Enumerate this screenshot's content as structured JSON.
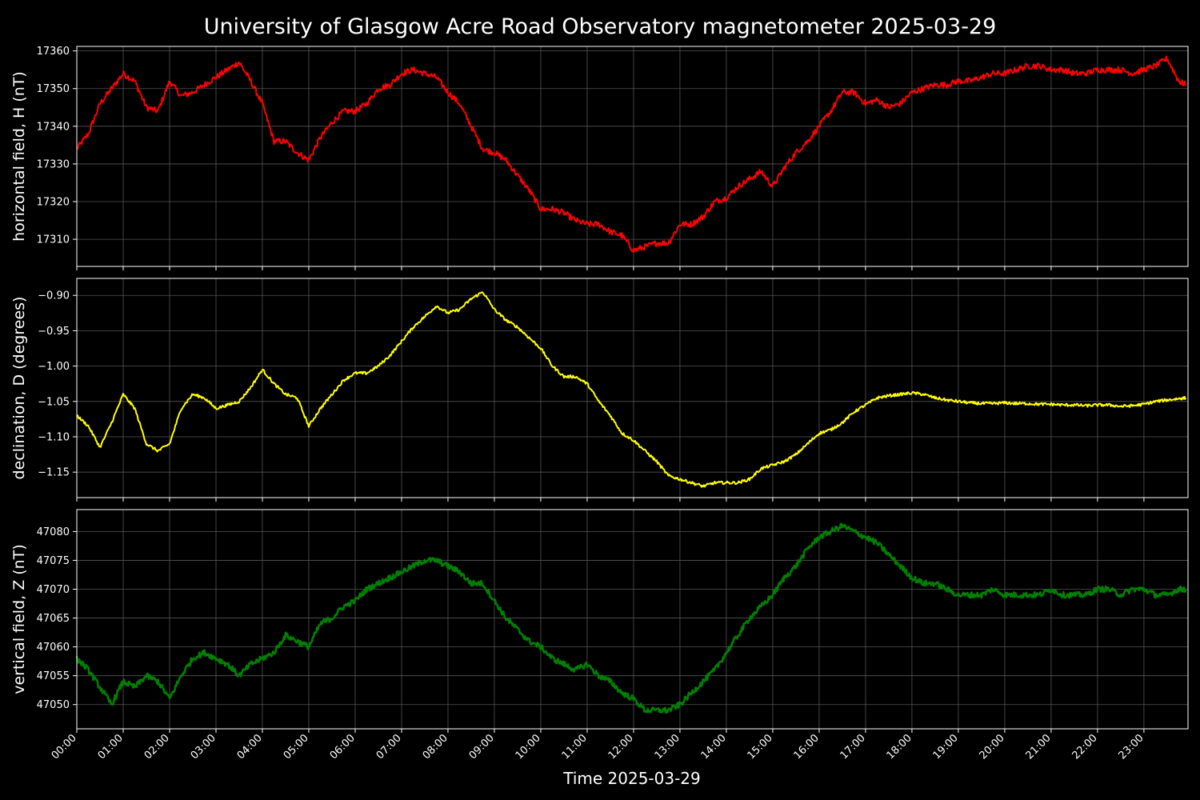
{
  "title": "University of Glasgow Acre Road Observatory magnetometer 2025-03-29",
  "xlabel": "Time 2025-03-29",
  "x_ticks": [
    "00:00",
    "01:00",
    "02:00",
    "03:00",
    "04:00",
    "05:00",
    "06:00",
    "07:00",
    "08:00",
    "09:00",
    "10:00",
    "11:00",
    "12:00",
    "13:00",
    "14:00",
    "15:00",
    "16:00",
    "17:00",
    "18:00",
    "19:00",
    "20:00",
    "21:00",
    "22:00",
    "23:00"
  ],
  "chart_data": [
    {
      "type": "line",
      "ylabel": "horizontal field, H (nT)",
      "color": "#ff0000",
      "xlim": [
        0,
        23.95
      ],
      "ylim": [
        17302.8,
        17361.2
      ],
      "yticks": [
        "17310",
        "17320",
        "17330",
        "17340",
        "17350",
        "17360"
      ],
      "grid": true,
      "x": [
        0,
        0.25,
        0.5,
        0.75,
        1.0,
        1.25,
        1.5,
        1.75,
        2.0,
        2.25,
        2.5,
        2.75,
        3.0,
        3.25,
        3.5,
        3.75,
        4.0,
        4.25,
        4.5,
        4.75,
        5.0,
        5.25,
        5.5,
        5.75,
        6.0,
        6.25,
        6.5,
        6.75,
        7.0,
        7.25,
        7.5,
        7.75,
        8.0,
        8.25,
        8.5,
        8.75,
        9.0,
        9.25,
        9.5,
        9.75,
        10.0,
        10.25,
        10.5,
        10.75,
        11.0,
        11.25,
        11.5,
        11.75,
        12.0,
        12.25,
        12.5,
        12.75,
        13.0,
        13.25,
        13.5,
        13.75,
        14.0,
        14.25,
        14.5,
        14.75,
        15.0,
        15.25,
        15.5,
        15.75,
        16.0,
        16.25,
        16.5,
        16.75,
        17.0,
        17.25,
        17.5,
        17.75,
        18.0,
        18.25,
        18.5,
        18.75,
        19.0,
        19.25,
        19.5,
        19.75,
        20.0,
        20.25,
        20.5,
        20.75,
        21.0,
        21.25,
        21.5,
        21.75,
        22.0,
        22.25,
        22.5,
        22.75,
        23.0,
        23.25,
        23.5,
        23.75,
        23.9
      ],
      "y": [
        17334,
        17338,
        17346,
        17350,
        17354,
        17352,
        17345,
        17344,
        17352,
        17348,
        17349,
        17351,
        17353,
        17355,
        17357,
        17352,
        17346,
        17336,
        17336,
        17333,
        17331,
        17337,
        17341,
        17344,
        17344,
        17346,
        17350,
        17351,
        17354,
        17355,
        17354,
        17353,
        17349,
        17346,
        17340,
        17334,
        17333,
        17331,
        17327,
        17323,
        17318,
        17318,
        17317,
        17315,
        17314,
        17314,
        17312,
        17311,
        17307,
        17308,
        17309,
        17309,
        17314,
        17314,
        17316,
        17320,
        17321,
        17324,
        17326,
        17328,
        17324,
        17329,
        17333,
        17336,
        17340,
        17344,
        17349,
        17349,
        17346,
        17347,
        17345,
        17346,
        17349,
        17350,
        17351,
        17351,
        17352,
        17352,
        17353,
        17354,
        17354,
        17355,
        17356,
        17356,
        17355,
        17355,
        17354,
        17354,
        17355,
        17355,
        17355,
        17354,
        17355,
        17356,
        17358,
        17352,
        17351
      ],
      "noise": 0.8
    },
    {
      "type": "line",
      "ylabel": "declination, D (degrees)",
      "color": "#ffff00",
      "xlim": [
        0,
        23.95
      ],
      "ylim": [
        -1.186,
        -0.876
      ],
      "yticks": [
        "−0.90",
        "−0.95",
        "−1.00",
        "−1.05",
        "−1.10",
        "−1.15"
      ],
      "grid": true,
      "x": [
        0,
        0.25,
        0.5,
        0.75,
        1.0,
        1.25,
        1.5,
        1.75,
        2.0,
        2.25,
        2.5,
        2.75,
        3.0,
        3.25,
        3.5,
        3.75,
        4.0,
        4.25,
        4.5,
        4.75,
        5.0,
        5.25,
        5.5,
        5.75,
        6.0,
        6.25,
        6.5,
        6.75,
        7.0,
        7.25,
        7.5,
        7.75,
        8.0,
        8.25,
        8.5,
        8.75,
        9.0,
        9.25,
        9.5,
        9.75,
        10.0,
        10.25,
        10.5,
        10.75,
        11.0,
        11.25,
        11.5,
        11.75,
        12.0,
        12.25,
        12.5,
        12.75,
        13.0,
        13.25,
        13.5,
        13.75,
        14.0,
        14.25,
        14.5,
        14.75,
        15.0,
        15.25,
        15.5,
        15.75,
        16.0,
        16.25,
        16.5,
        16.75,
        17.0,
        17.25,
        17.5,
        17.75,
        18.0,
        18.25,
        18.5,
        18.75,
        19.0,
        19.25,
        19.5,
        19.75,
        20.0,
        20.25,
        20.5,
        20.75,
        21.0,
        21.25,
        21.5,
        21.75,
        22.0,
        22.25,
        22.5,
        22.75,
        23.0,
        23.25,
        23.5,
        23.75,
        23.9
      ],
      "y": [
        -1.07,
        -1.085,
        -1.115,
        -1.08,
        -1.04,
        -1.06,
        -1.11,
        -1.12,
        -1.11,
        -1.06,
        -1.04,
        -1.045,
        -1.06,
        -1.055,
        -1.05,
        -1.03,
        -1.005,
        -1.025,
        -1.04,
        -1.045,
        -1.085,
        -1.06,
        -1.04,
        -1.02,
        -1.01,
        -1.01,
        -1.0,
        -0.985,
        -0.965,
        -0.945,
        -0.93,
        -0.915,
        -0.925,
        -0.92,
        -0.905,
        -0.895,
        -0.92,
        -0.935,
        -0.945,
        -0.96,
        -0.975,
        -1.0,
        -1.015,
        -1.015,
        -1.025,
        -1.05,
        -1.07,
        -1.095,
        -1.105,
        -1.12,
        -1.135,
        -1.155,
        -1.16,
        -1.165,
        -1.17,
        -1.165,
        -1.165,
        -1.165,
        -1.16,
        -1.145,
        -1.14,
        -1.135,
        -1.125,
        -1.11,
        -1.095,
        -1.09,
        -1.08,
        -1.065,
        -1.055,
        -1.045,
        -1.042,
        -1.04,
        -1.038,
        -1.04,
        -1.045,
        -1.048,
        -1.05,
        -1.052,
        -1.053,
        -1.053,
        -1.052,
        -1.053,
        -1.053,
        -1.054,
        -1.054,
        -1.055,
        -1.055,
        -1.056,
        -1.055,
        -1.055,
        -1.057,
        -1.056,
        -1.054,
        -1.05,
        -1.048,
        -1.046,
        -1.045
      ],
      "noise": 0.002
    },
    {
      "type": "line",
      "ylabel": "vertical field, Z (nT)",
      "color": "#008000",
      "xlim": [
        0,
        23.95
      ],
      "ylim": [
        47045.8,
        47083.8
      ],
      "yticks": [
        "47050",
        "47055",
        "47060",
        "47065",
        "47070",
        "47075",
        "47080"
      ],
      "grid": true,
      "x": [
        0,
        0.25,
        0.5,
        0.75,
        1.0,
        1.25,
        1.5,
        1.75,
        2.0,
        2.25,
        2.5,
        2.75,
        3.0,
        3.25,
        3.5,
        3.75,
        4.0,
        4.25,
        4.5,
        4.75,
        5.0,
        5.25,
        5.5,
        5.75,
        6.0,
        6.25,
        6.5,
        6.75,
        7.0,
        7.25,
        7.5,
        7.75,
        8.0,
        8.25,
        8.5,
        8.75,
        9.0,
        9.25,
        9.5,
        9.75,
        10.0,
        10.25,
        10.5,
        10.75,
        11.0,
        11.25,
        11.5,
        11.75,
        12.0,
        12.25,
        12.5,
        12.75,
        13.0,
        13.25,
        13.5,
        13.75,
        14.0,
        14.25,
        14.5,
        14.75,
        15.0,
        15.25,
        15.5,
        15.75,
        16.0,
        16.25,
        16.5,
        16.75,
        17.0,
        17.25,
        17.5,
        17.75,
        18.0,
        18.25,
        18.5,
        18.75,
        19.0,
        19.25,
        19.5,
        19.75,
        20.0,
        20.25,
        20.5,
        20.75,
        21.0,
        21.25,
        21.5,
        21.75,
        22.0,
        22.25,
        22.5,
        22.75,
        23.0,
        23.25,
        23.5,
        23.75,
        23.9
      ],
      "y": [
        47058,
        47056,
        47053,
        47050,
        47054,
        47053,
        47055,
        47054,
        47051,
        47055,
        47058,
        47059,
        47058,
        47057,
        47055,
        47057,
        47058,
        47059,
        47062,
        47061,
        47060,
        47064,
        47065,
        47067,
        47068,
        47070,
        47071,
        47072,
        47073,
        47074,
        47075,
        47075,
        47074,
        47073,
        47071,
        47071,
        47068,
        47065,
        47063,
        47061,
        47060,
        47058,
        47057,
        47056,
        47057,
        47055,
        47054,
        47052,
        47051,
        47049,
        47049,
        47049,
        47050,
        47052,
        47054,
        47056,
        47059,
        47062,
        47065,
        47067,
        47069,
        47072,
        47074,
        47077,
        47079,
        47080,
        47081,
        47080,
        47079,
        47078,
        47076,
        47074,
        47072,
        47071,
        47071,
        47070,
        47069,
        47069,
        47069,
        47070,
        47069,
        47069,
        47069,
        47069,
        47070,
        47069,
        47069,
        47069,
        47070,
        47070,
        47069,
        47070,
        47070,
        47069,
        47069,
        47070,
        47070
      ],
      "noise": 0.5
    }
  ]
}
